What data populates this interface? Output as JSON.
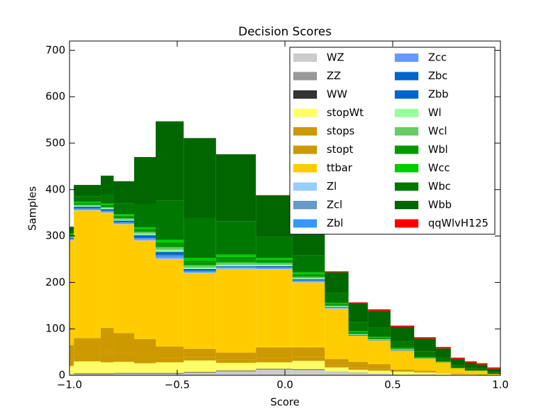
{
  "chart_data": {
    "type": "stacked_histogram",
    "title": "Decision Scores",
    "x_label": "Score",
    "y_label": "Samples",
    "bins": [
      -1.0,
      -0.98,
      -0.855,
      -0.795,
      -0.7,
      -0.6,
      -0.47,
      -0.32,
      -0.135,
      0.035,
      0.185,
      0.295,
      0.385,
      0.49,
      0.6,
      0.7,
      0.77,
      0.835,
      0.89,
      0.94,
      1.0
    ],
    "xlim": [
      -1.0,
      1.0
    ],
    "xticks": [
      {
        "value": -1.0,
        "label": "−1.0"
      },
      {
        "value": -0.5,
        "label": "−0.5"
      },
      {
        "value": 0.0,
        "label": "0.0"
      },
      {
        "value": 0.5,
        "label": "0.5"
      },
      {
        "value": 1.0,
        "label": "1.0"
      }
    ],
    "ylim": [
      0,
      720
    ],
    "yticks": [
      0,
      100,
      200,
      300,
      400,
      500,
      600,
      700
    ],
    "legend": {
      "position": "upper right",
      "columns": 2
    },
    "series": [
      {
        "name": "WZ",
        "color": "#cccccc",
        "values": [
          1,
          2,
          2,
          3,
          3,
          3,
          5,
          8,
          12,
          11,
          7,
          5,
          4,
          2,
          2,
          1,
          1,
          1,
          0,
          0
        ]
      },
      {
        "name": "ZZ",
        "color": "#999999",
        "values": [
          1,
          1,
          1,
          1,
          1,
          1,
          1,
          1,
          1,
          1,
          1,
          1,
          0,
          0,
          0,
          0,
          0,
          0,
          0,
          0
        ]
      },
      {
        "name": "WW",
        "color": "#333333",
        "values": [
          0,
          1,
          1,
          1,
          1,
          1,
          1,
          1,
          1,
          1,
          0,
          0,
          0,
          0,
          0,
          0,
          0,
          0,
          0,
          0
        ]
      },
      {
        "name": "stopWt",
        "color": "#ffff66",
        "values": [
          18,
          26,
          24,
          24,
          21,
          23,
          25,
          17,
          14,
          18,
          9,
          6,
          6,
          6,
          4,
          3,
          1,
          1,
          1,
          1
        ]
      },
      {
        "name": "stops",
        "color": "#cc9900",
        "values": [
          14,
          15,
          22,
          19,
          16,
          10,
          8,
          7,
          10,
          9,
          5,
          5,
          4,
          1,
          1,
          0,
          1,
          0,
          0,
          0
        ]
      },
      {
        "name": "stopt",
        "color": "#cc9900",
        "values": [
          31,
          35,
          52,
          43,
          36,
          24,
          17,
          15,
          22,
          20,
          13,
          12,
          10,
          3,
          3,
          1,
          1,
          1,
          1,
          0
        ]
      },
      {
        "name": "ttbar",
        "color": "#ffcc00",
        "values": [
          225,
          275,
          248,
          234,
          212,
          188,
          163,
          180,
          168,
          140,
          108,
          56,
          51,
          41,
          26,
          23,
          11,
          7,
          8,
          2
        ]
      },
      {
        "name": "Zl",
        "color": "#99ccff",
        "values": [
          1,
          1,
          1,
          1,
          1,
          2,
          1,
          1,
          1,
          1,
          1,
          0,
          0,
          0,
          0,
          0,
          0,
          0,
          0,
          0
        ]
      },
      {
        "name": "Zcl",
        "color": "#6699cc",
        "values": [
          1,
          1,
          1,
          1,
          2,
          2,
          1,
          1,
          1,
          1,
          1,
          0,
          0,
          0,
          0,
          0,
          0,
          0,
          0,
          0
        ]
      },
      {
        "name": "Zbl",
        "color": "#3399ff",
        "values": [
          1,
          1,
          1,
          1,
          1,
          2,
          1,
          1,
          1,
          1,
          1,
          1,
          0,
          0,
          0,
          0,
          0,
          0,
          0,
          0
        ]
      },
      {
        "name": "Zcc",
        "color": "#6699ff",
        "values": [
          1,
          1,
          1,
          1,
          1,
          2,
          1,
          1,
          1,
          1,
          0,
          0,
          0,
          0,
          0,
          0,
          0,
          0,
          0,
          0
        ]
      },
      {
        "name": "Zbc",
        "color": "#0066cc",
        "values": [
          1,
          1,
          1,
          1,
          1,
          2,
          1,
          1,
          1,
          1,
          0,
          0,
          0,
          0,
          0,
          0,
          0,
          0,
          0,
          0
        ]
      },
      {
        "name": "Zbb",
        "color": "#0066cc",
        "values": [
          2,
          3,
          3,
          3,
          6,
          6,
          4,
          1,
          2,
          2,
          1,
          1,
          1,
          1,
          0,
          0,
          0,
          0,
          0,
          0
        ]
      },
      {
        "name": "Wl",
        "color": "#99ff99",
        "values": [
          1,
          2,
          2,
          2,
          3,
          4,
          3,
          3,
          3,
          2,
          1,
          1,
          1,
          1,
          0,
          0,
          0,
          0,
          0,
          0
        ]
      },
      {
        "name": "Wcl",
        "color": "#66cc66",
        "values": [
          2,
          2,
          2,
          3,
          4,
          6,
          5,
          5,
          4,
          3,
          2,
          1,
          1,
          1,
          1,
          0,
          0,
          0,
          0,
          0
        ]
      },
      {
        "name": "Wbl",
        "color": "#009900",
        "values": [
          3,
          4,
          5,
          5,
          6,
          10,
          10,
          12,
          7,
          6,
          4,
          4,
          3,
          2,
          1,
          1,
          0,
          0,
          0,
          0
        ]
      },
      {
        "name": "Wcc",
        "color": "#00cc00",
        "values": [
          2,
          3,
          3,
          4,
          4,
          6,
          6,
          5,
          4,
          4,
          2,
          2,
          2,
          1,
          1,
          1,
          1,
          0,
          0,
          0
        ]
      },
      {
        "name": "Wbc",
        "color": "#007700",
        "values": [
          5,
          12,
          20,
          24,
          50,
          85,
          86,
          72,
          45,
          36,
          22,
          20,
          19,
          15,
          13,
          9,
          6,
          6,
          4,
          4
        ]
      },
      {
        "name": "Wbb",
        "color": "#006600",
        "values": [
          10,
          24,
          40,
          47,
          101,
          170,
          172,
          144,
          89,
          71,
          44,
          40,
          37,
          30,
          27,
          19,
          13,
          11,
          9,
          7
        ]
      },
      {
        "name": "qqWlvH125",
        "color": "#ff0000",
        "values": [
          0,
          0,
          0,
          0,
          0,
          0,
          0,
          0,
          1,
          1,
          2,
          2,
          3,
          3,
          3,
          3,
          3,
          3,
          3,
          3
        ]
      }
    ]
  }
}
